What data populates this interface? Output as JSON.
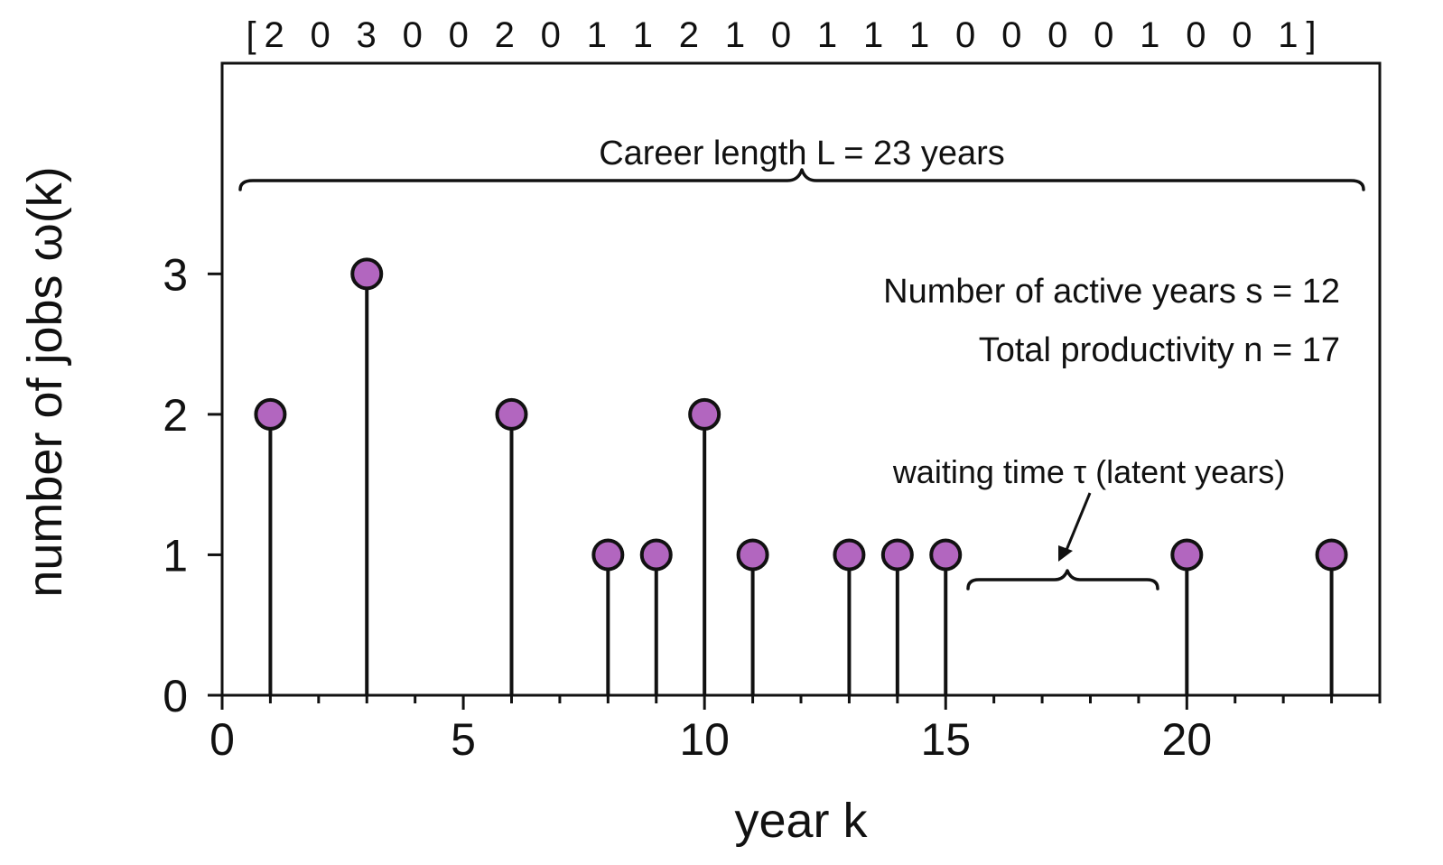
{
  "chart_data": {
    "type": "scatter",
    "style": "stem",
    "xlabel": "year k",
    "ylabel": "number of jobs ω(k)",
    "xlim": [
      0,
      24
    ],
    "ylim": [
      0,
      4.5
    ],
    "xticks": [
      0,
      5,
      10,
      15,
      20
    ],
    "yticks": [
      0,
      1,
      2,
      3
    ],
    "sequence_label": "[2 0 3 0 0 2 0 1 1 2 1 0 1 1 1 0 0 0 0 1 0 0 1]",
    "points": [
      {
        "x": 1,
        "y": 2
      },
      {
        "x": 3,
        "y": 3
      },
      {
        "x": 6,
        "y": 2
      },
      {
        "x": 8,
        "y": 1
      },
      {
        "x": 9,
        "y": 1
      },
      {
        "x": 10,
        "y": 2
      },
      {
        "x": 11,
        "y": 1
      },
      {
        "x": 13,
        "y": 1
      },
      {
        "x": 14,
        "y": 1
      },
      {
        "x": 15,
        "y": 1
      },
      {
        "x": 20,
        "y": 1
      },
      {
        "x": 23,
        "y": 1
      }
    ],
    "annotations": {
      "career_length": "Career length L = 23 years",
      "active_years": "Number of active years s = 12",
      "total_productivity": "Total productivity n = 17",
      "waiting_time": "waiting time τ (latent years)"
    },
    "colors": {
      "marker_fill": "#b266bf",
      "stroke": "#111111"
    },
    "grid": false
  }
}
